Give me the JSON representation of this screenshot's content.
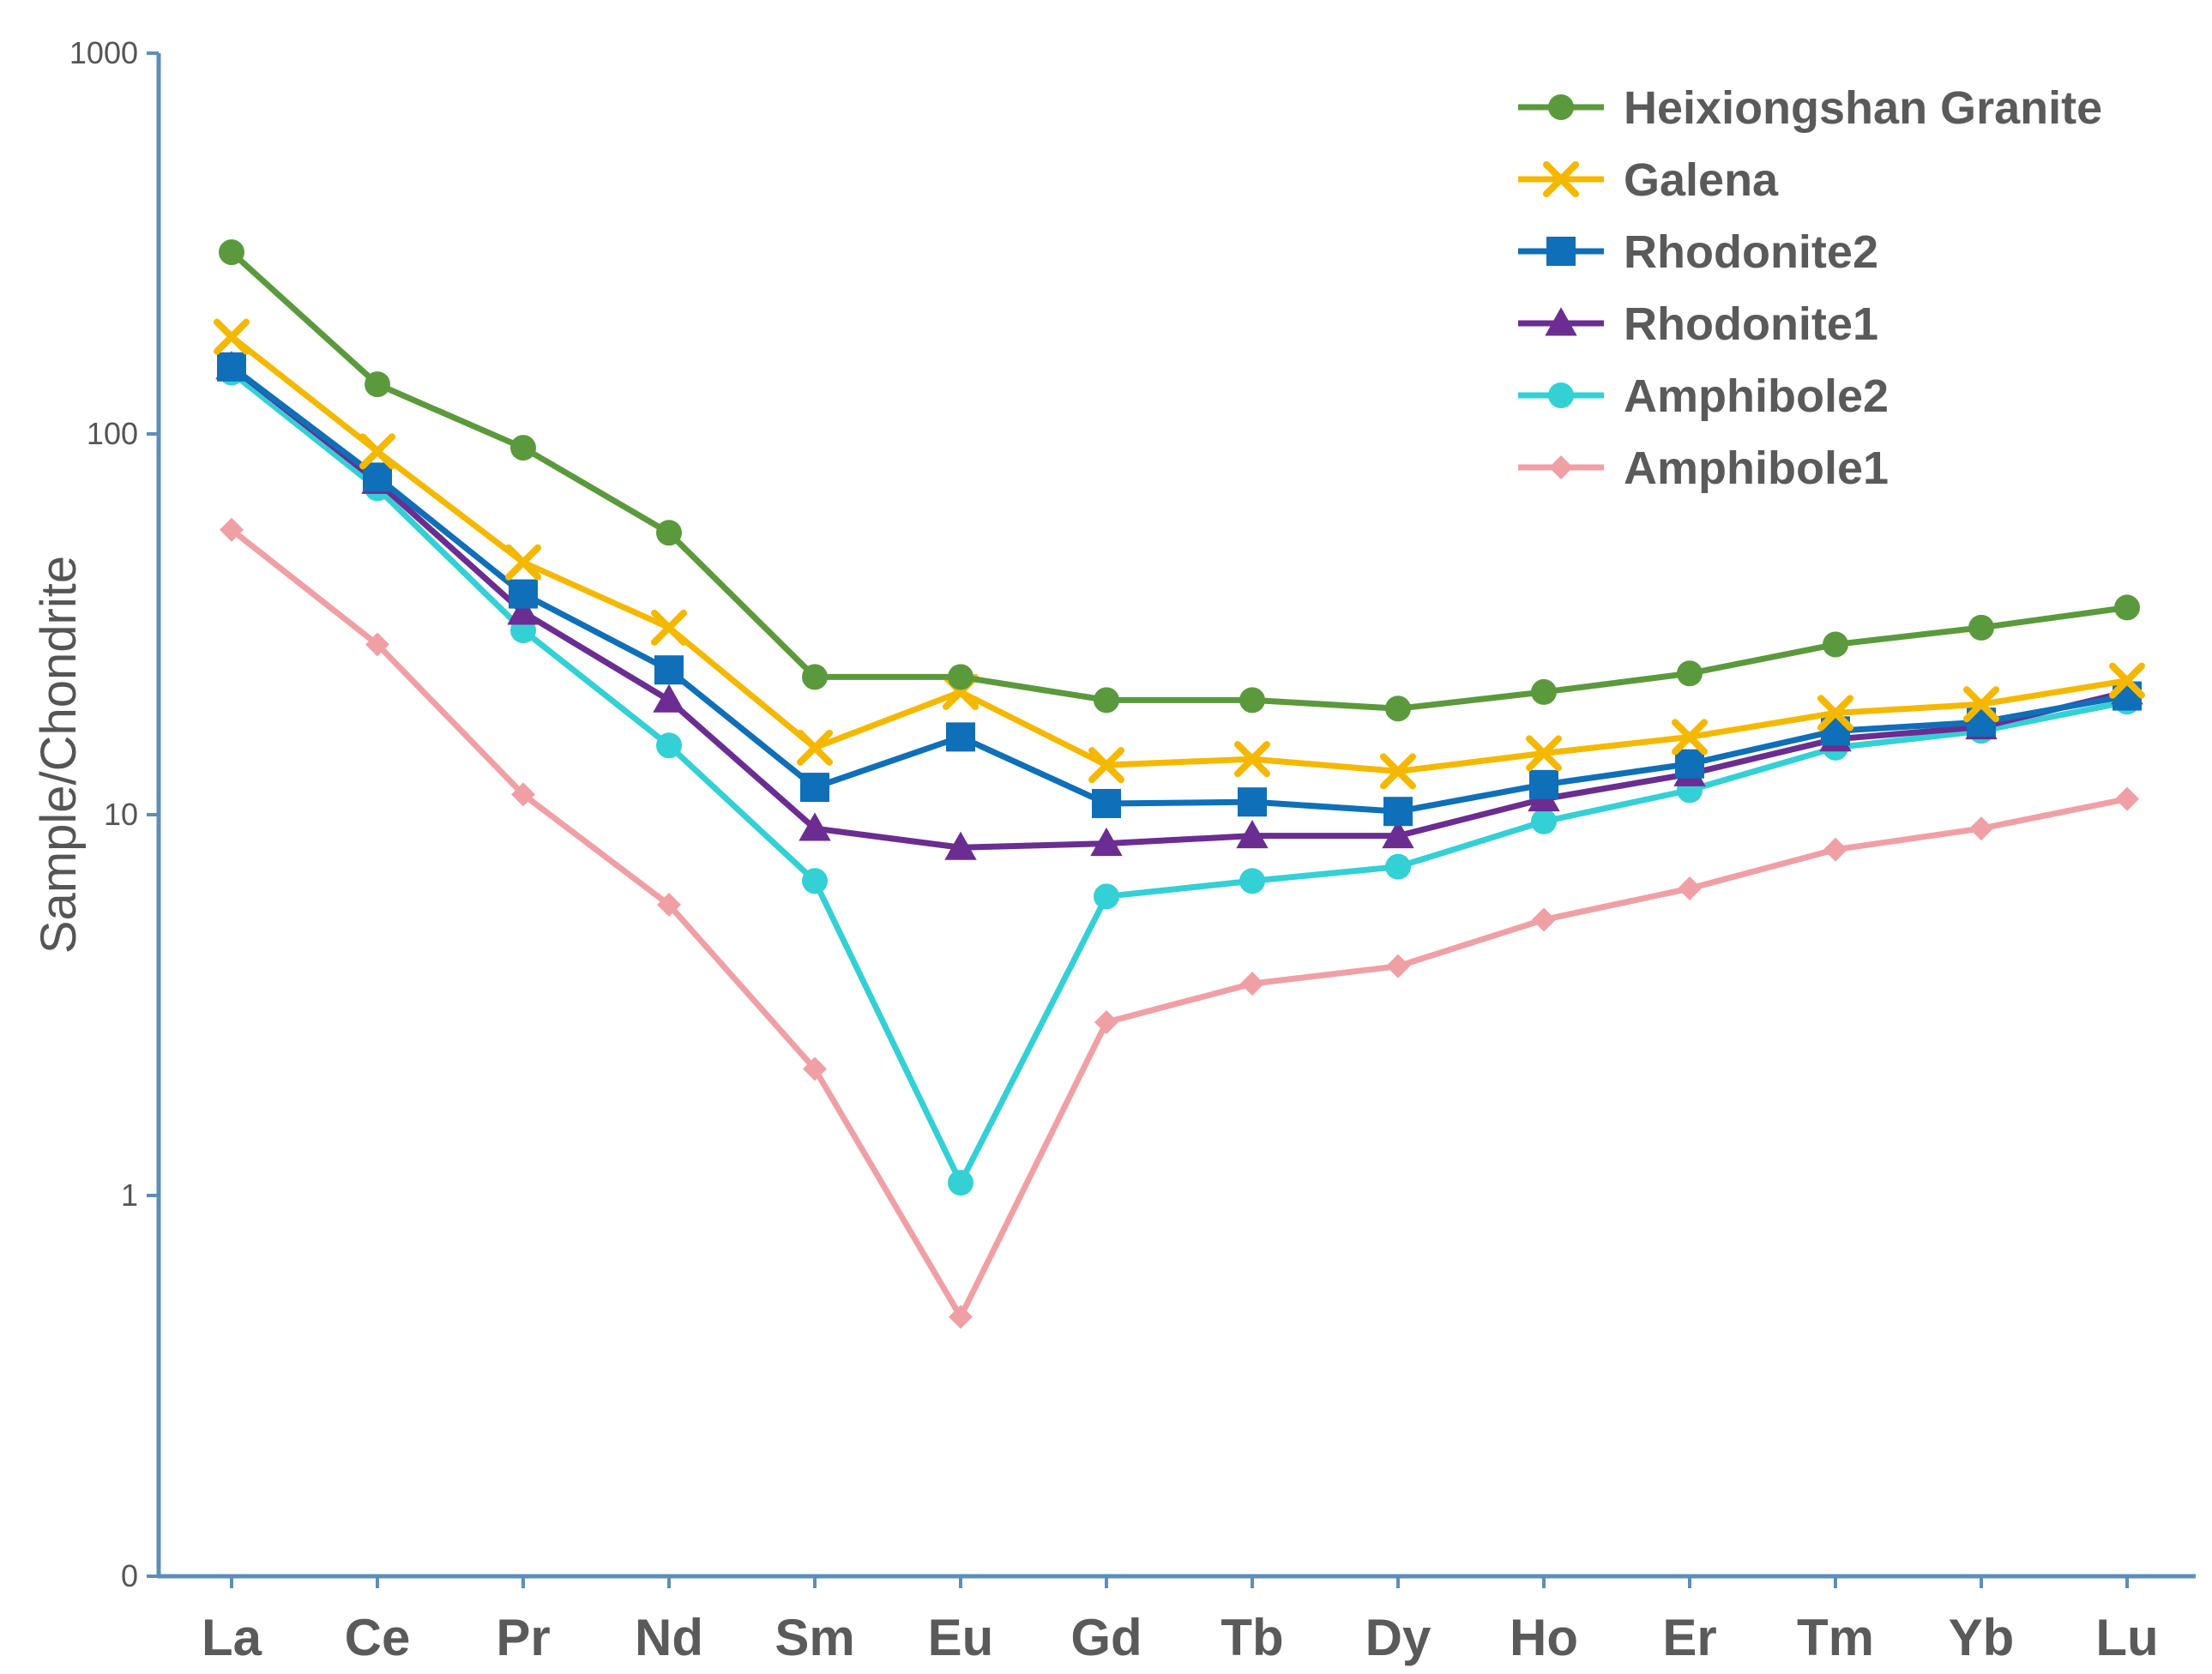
{
  "chart_data": {
    "type": "line",
    "yscale": "log",
    "title": "",
    "xlabel": "",
    "ylabel": "Sample/Chondrite",
    "ylim": [
      0.1,
      1000
    ],
    "yticks": [
      {
        "value": 1000,
        "label": "1000"
      },
      {
        "value": 100,
        "label": "100"
      },
      {
        "value": 10,
        "label": "10"
      },
      {
        "value": 1,
        "label": "1"
      },
      {
        "value": 0.1,
        "label": "0"
      }
    ],
    "categories": [
      "La",
      "Ce",
      "Pr",
      "Nd",
      "Sm",
      "Eu",
      "Gd",
      "Tb",
      "Dy",
      "Ho",
      "Er",
      "Tm",
      "Yb",
      "Lu"
    ],
    "legend_position": "top-right",
    "series": [
      {
        "name": "Heixiongshan Granite",
        "color": "#5b9a3c",
        "marker": "circle",
        "values": [
          300,
          135,
          92,
          55,
          23,
          23,
          20,
          20,
          19,
          21,
          23.5,
          28,
          31,
          35
        ]
      },
      {
        "name": "Galena",
        "color": "#f5b800",
        "marker": "x",
        "values": [
          180,
          90,
          46,
          31,
          15,
          21,
          13.5,
          14,
          13,
          14.5,
          16,
          18.5,
          19.5,
          22.5
        ]
      },
      {
        "name": "Rhodonite2",
        "color": "#0f6fb8",
        "marker": "square",
        "values": [
          150,
          77,
          38,
          24,
          11.8,
          16,
          10.7,
          10.8,
          10.2,
          12,
          13.6,
          16.6,
          17.5,
          20.5
        ]
      },
      {
        "name": "Rhodonite1",
        "color": "#6b2d91",
        "marker": "triangle",
        "values": [
          150,
          75,
          34,
          20,
          9.2,
          8.2,
          8.4,
          8.8,
          8.8,
          11,
          12.8,
          15.8,
          17,
          21
        ]
      },
      {
        "name": "Amphibole2",
        "color": "#33d0d6",
        "marker": "circle",
        "values": [
          145,
          72,
          30.5,
          15.2,
          6.7,
          1.08,
          6.1,
          6.7,
          7.3,
          9.6,
          11.6,
          15,
          16.6,
          19.8
        ]
      },
      {
        "name": "Amphibole1",
        "color": "#f0a0a5",
        "marker": "diamond",
        "values": [
          56,
          28,
          11.3,
          5.8,
          2.15,
          0.48,
          2.85,
          3.6,
          4.0,
          5.3,
          6.4,
          8.1,
          9.2,
          11
        ]
      }
    ]
  }
}
